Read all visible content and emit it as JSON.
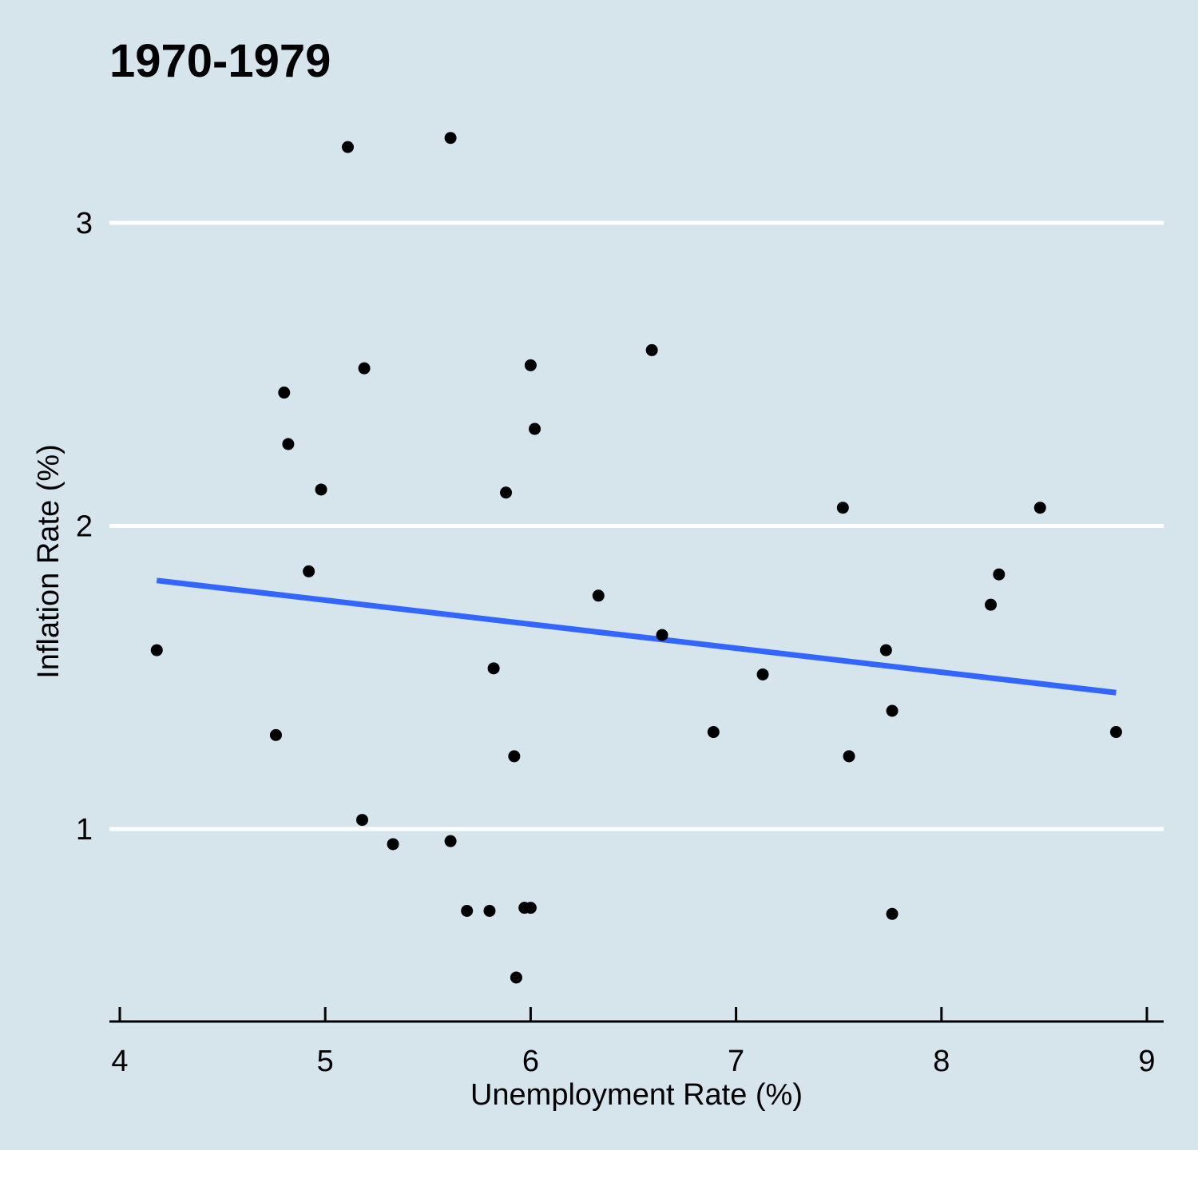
{
  "colors": {
    "panel_background": "#d6e4eb",
    "gridline": "#ffffff",
    "point": "#000000",
    "trend_line": "#3366ff",
    "axis": "#000000"
  },
  "chart_data": {
    "type": "scatter",
    "title": "1970-1979",
    "xlabel": "Unemployment Rate (%)",
    "ylabel": "Inflation Rate (%)",
    "xlim": [
      3.95,
      9.08
    ],
    "ylim": [
      0.37,
      3.68
    ],
    "x_ticks": [
      4,
      5,
      6,
      7,
      8,
      9
    ],
    "x_tick_labels": [
      "4",
      "5",
      "6",
      "7",
      "8",
      "9"
    ],
    "y_ticks": [
      1,
      2,
      3
    ],
    "y_tick_labels": [
      "1",
      "2",
      "3"
    ],
    "grid": "horizontal major lines",
    "legend": "none",
    "points": [
      {
        "x": 4.18,
        "y": 1.59
      },
      {
        "x": 4.76,
        "y": 1.31
      },
      {
        "x": 4.8,
        "y": 2.44
      },
      {
        "x": 4.82,
        "y": 2.27
      },
      {
        "x": 4.92,
        "y": 1.85
      },
      {
        "x": 4.98,
        "y": 2.12
      },
      {
        "x": 5.11,
        "y": 3.25
      },
      {
        "x": 5.18,
        "y": 1.03
      },
      {
        "x": 5.19,
        "y": 2.52
      },
      {
        "x": 5.33,
        "y": 0.95
      },
      {
        "x": 5.61,
        "y": 0.96
      },
      {
        "x": 5.61,
        "y": 3.28
      },
      {
        "x": 5.69,
        "y": 0.73
      },
      {
        "x": 5.8,
        "y": 0.73
      },
      {
        "x": 5.82,
        "y": 1.53
      },
      {
        "x": 5.88,
        "y": 2.11
      },
      {
        "x": 5.92,
        "y": 1.24
      },
      {
        "x": 5.93,
        "y": 0.51
      },
      {
        "x": 5.97,
        "y": 0.74
      },
      {
        "x": 6.0,
        "y": 0.74
      },
      {
        "x": 6.0,
        "y": 2.53
      },
      {
        "x": 6.02,
        "y": 2.32
      },
      {
        "x": 6.33,
        "y": 1.77
      },
      {
        "x": 6.59,
        "y": 2.58
      },
      {
        "x": 6.64,
        "y": 1.64
      },
      {
        "x": 6.89,
        "y": 1.32
      },
      {
        "x": 7.13,
        "y": 1.51
      },
      {
        "x": 7.52,
        "y": 2.06
      },
      {
        "x": 7.55,
        "y": 1.24
      },
      {
        "x": 7.73,
        "y": 1.59
      },
      {
        "x": 7.76,
        "y": 0.72
      },
      {
        "x": 7.76,
        "y": 1.39
      },
      {
        "x": 8.24,
        "y": 1.74
      },
      {
        "x": 8.28,
        "y": 1.84
      },
      {
        "x": 8.48,
        "y": 2.06
      },
      {
        "x": 8.85,
        "y": 1.32
      }
    ],
    "trend_line": {
      "method": "linear fit",
      "x": [
        4.18,
        8.85
      ],
      "y": [
        1.82,
        1.45
      ]
    }
  }
}
